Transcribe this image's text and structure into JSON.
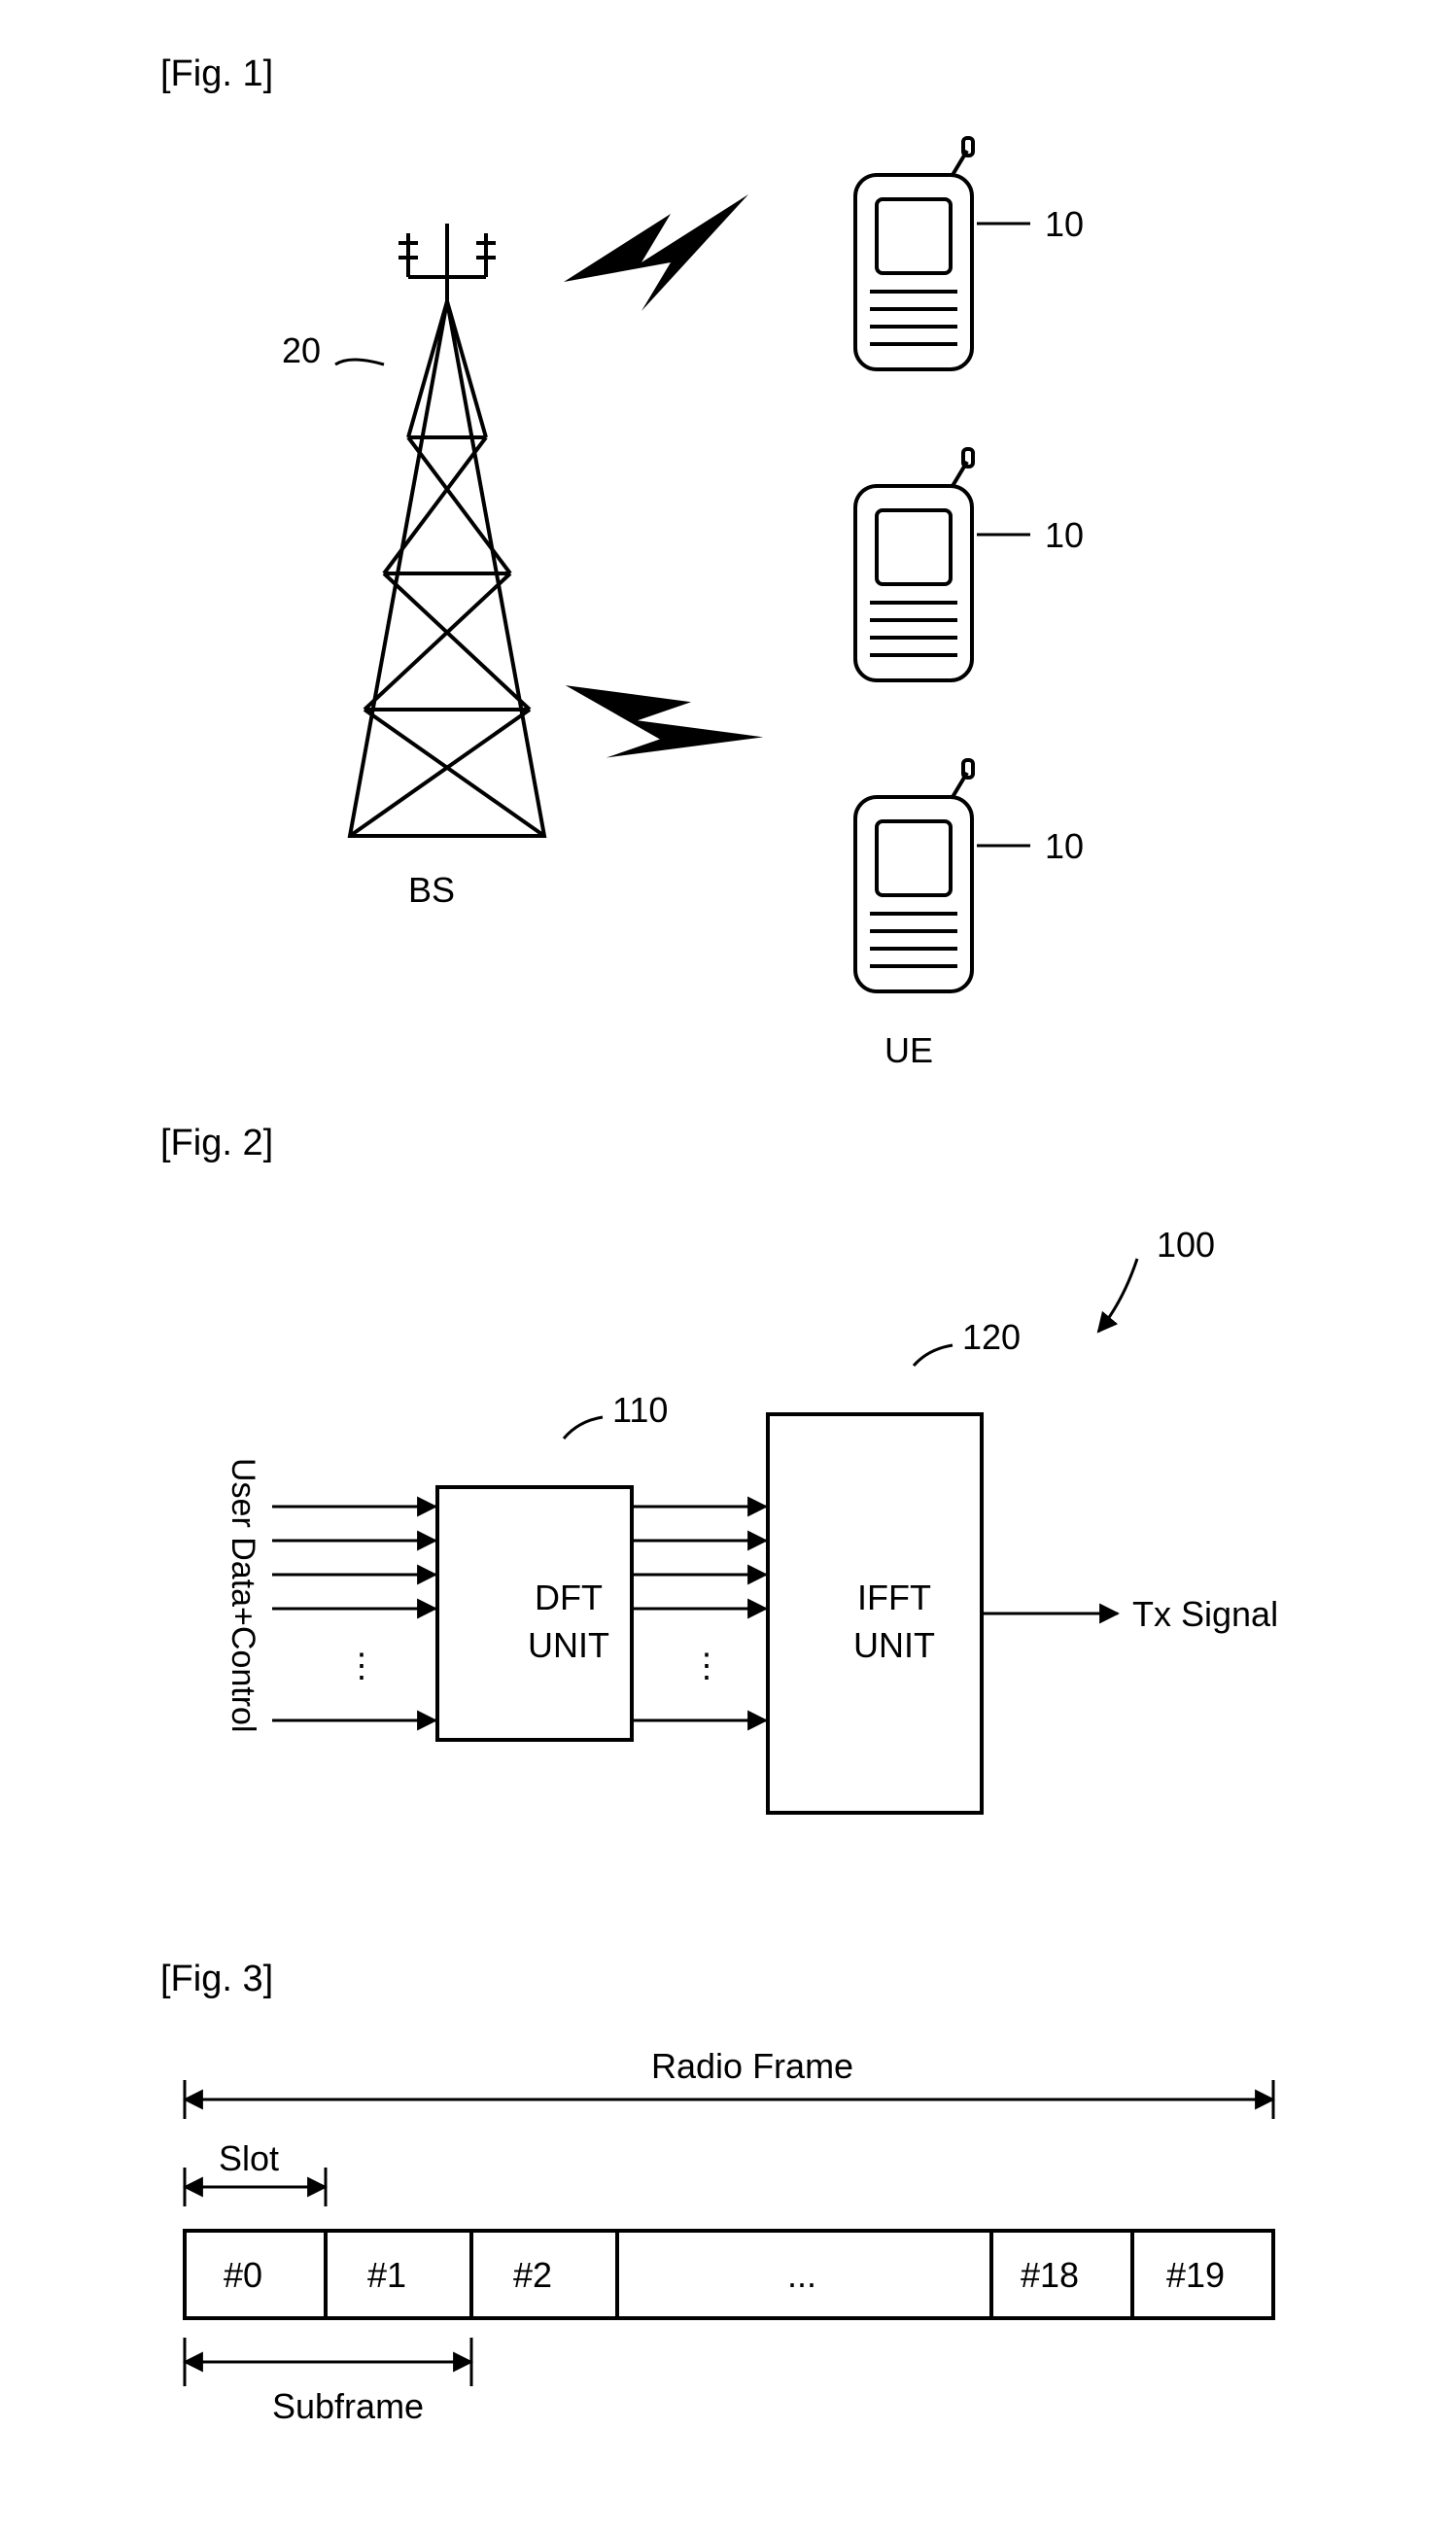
{
  "fig1": {
    "label": "[Fig. 1]",
    "bs_label": "BS",
    "bs_ref": "20",
    "ue_label": "UE",
    "ue_ref": "10",
    "stroke": "#000000",
    "stroke_width": 3
  },
  "fig2": {
    "label": "[Fig. 2]",
    "sys_ref": "100",
    "dft_ref": "110",
    "ifft_ref": "120",
    "input_label": "User Data+Control",
    "dft_label": "DFT UNIT",
    "ifft_label": "IFFT UNIT",
    "output_label": "Tx Signal",
    "stroke": "#000000",
    "stroke_width": 3
  },
  "fig3": {
    "label": "[Fig. 3]",
    "radio_frame": "Radio Frame",
    "slot": "Slot",
    "subframe": "Subframe",
    "cells": [
      "#0",
      "#1",
      "#2",
      "...",
      "#18",
      "#19"
    ],
    "stroke": "#000000",
    "stroke_width": 3
  }
}
